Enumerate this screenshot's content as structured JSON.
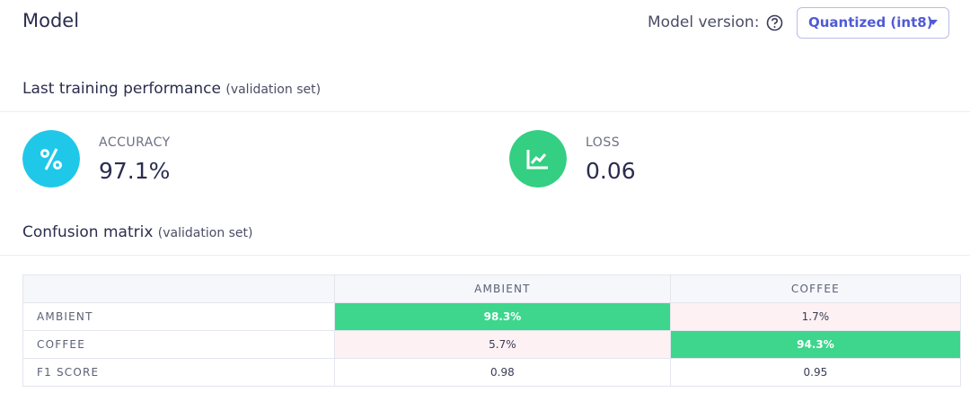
{
  "header": {
    "title": "Model",
    "version_label": "Model version:",
    "version_value": "Quantized (int8)"
  },
  "performance": {
    "title": "Last training performance",
    "note": "(validation set)",
    "metrics": [
      {
        "label": "ACCURACY",
        "value": "97.1%"
      },
      {
        "label": "LOSS",
        "value": "0.06"
      }
    ]
  },
  "confusion": {
    "title": "Confusion matrix",
    "note": "(validation set)",
    "table": {
      "columns": [
        "AMBIENT",
        "COFFEE"
      ],
      "rows": [
        [
          "AMBIENT",
          "98.3%",
          "1.7%"
        ],
        [
          "COFFEE",
          "5.7%",
          "94.3%"
        ],
        [
          "F1 SCORE",
          "0.98",
          "0.95"
        ]
      ]
    }
  }
}
